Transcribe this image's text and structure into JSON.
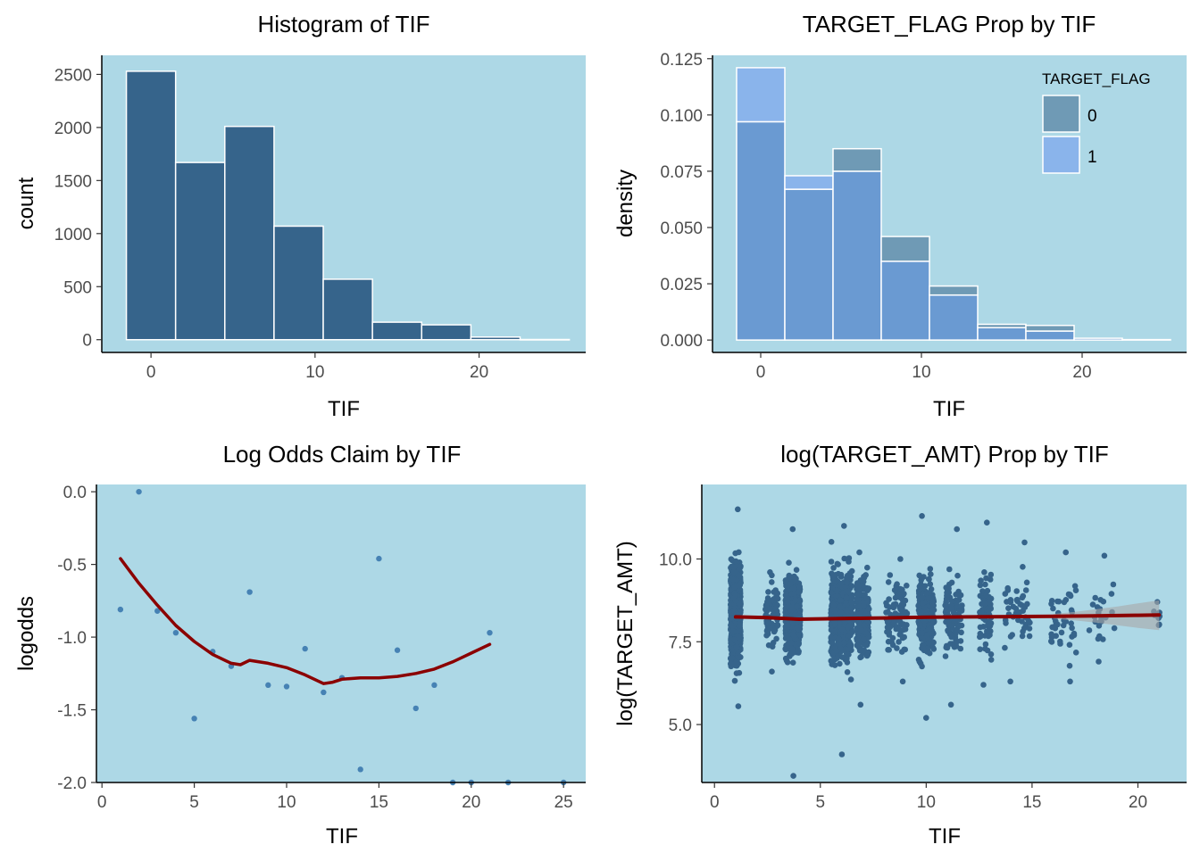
{
  "colors": {
    "panel_bg": "#add8e6",
    "hist_fill": "#36648b",
    "density_fill_0": "#6f9ab5",
    "density_fill_1": "#8ab4eb",
    "density_overlap": "#6a9ad2",
    "point_color": "#4682b4",
    "jitter_point_color": "#36648b",
    "smooth_line": "#8b0000",
    "ci_band": "#a9a9a9"
  },
  "chart_data": [
    {
      "type": "bar",
      "title": "Histogram of TIF",
      "xlabel": "TIF",
      "ylabel": "count",
      "xlim": [
        -3,
        26.5
      ],
      "ylim": [
        -120,
        2680
      ],
      "xticks": [
        0,
        10,
        20
      ],
      "yticks": [
        0,
        500,
        1000,
        1500,
        2000,
        2500
      ],
      "bins": [
        {
          "x0": -1.5,
          "x1": 1.5,
          "value": 2530
        },
        {
          "x0": 1.5,
          "x1": 4.5,
          "value": 1670
        },
        {
          "x0": 4.5,
          "x1": 7.5,
          "value": 2010
        },
        {
          "x0": 7.5,
          "x1": 10.5,
          "value": 1070
        },
        {
          "x0": 10.5,
          "x1": 13.5,
          "value": 570
        },
        {
          "x0": 13.5,
          "x1": 16.5,
          "value": 165
        },
        {
          "x0": 16.5,
          "x1": 19.5,
          "value": 140
        },
        {
          "x0": 19.5,
          "x1": 22.5,
          "value": 25
        },
        {
          "x0": 22.5,
          "x1": 25.5,
          "value": 2
        }
      ]
    },
    {
      "type": "bar",
      "title": "TARGET_FLAG Prop by TIF",
      "xlabel": "TIF",
      "ylabel": "density",
      "xlim": [
        -3,
        26.5
      ],
      "ylim": [
        -0.0055,
        0.1265
      ],
      "xticks": [
        0,
        10,
        20
      ],
      "yticks": [
        0.0,
        0.025,
        0.05,
        0.075,
        0.1,
        0.125
      ],
      "ytick_labels": [
        "0.000",
        "0.025",
        "0.050",
        "0.075",
        "0.100",
        "0.125"
      ],
      "legend": {
        "title": "TARGET_FLAG",
        "position": "top-right"
      },
      "bin_edges": [
        -1.5,
        1.5,
        4.5,
        7.5,
        10.5,
        13.5,
        16.5,
        19.5,
        22.5,
        25.5
      ],
      "series": [
        {
          "name": "0",
          "values": [
            0.097,
            0.067,
            0.085,
            0.046,
            0.024,
            0.007,
            0.0065,
            0.0012,
            0.0002
          ]
        },
        {
          "name": "1",
          "values": [
            0.121,
            0.073,
            0.075,
            0.035,
            0.02,
            0.0055,
            0.004,
            0.0008,
            0.0002
          ]
        }
      ]
    },
    {
      "type": "scatter",
      "title": "Log Odds Claim by TIF",
      "xlabel": "TIF",
      "ylabel": "logodds",
      "xlim": [
        -0.3,
        26.2
      ],
      "ylim": [
        -2.0,
        0.05
      ],
      "xticks": [
        0,
        5,
        10,
        15,
        20,
        25
      ],
      "yticks": [
        0.0,
        -0.5,
        -1.0,
        -1.5,
        -2.0
      ],
      "ytick_labels": [
        "0.0",
        "-0.5",
        "-1.0",
        "-1.5",
        "-2.0"
      ],
      "points": [
        {
          "x": 1,
          "y": -0.81
        },
        {
          "x": 2,
          "y": 0.0
        },
        {
          "x": 3,
          "y": -0.82
        },
        {
          "x": 4,
          "y": -0.97
        },
        {
          "x": 5,
          "y": -1.56
        },
        {
          "x": 6,
          "y": -1.1
        },
        {
          "x": 7,
          "y": -1.2
        },
        {
          "x": 8,
          "y": -0.69
        },
        {
          "x": 9,
          "y": -1.33
        },
        {
          "x": 10,
          "y": -1.34
        },
        {
          "x": 11,
          "y": -1.08
        },
        {
          "x": 12,
          "y": -1.38
        },
        {
          "x": 13,
          "y": -1.28
        },
        {
          "x": 14,
          "y": -1.91
        },
        {
          "x": 15,
          "y": -0.46
        },
        {
          "x": 16,
          "y": -1.09
        },
        {
          "x": 17,
          "y": -1.49
        },
        {
          "x": 18,
          "y": -1.33
        },
        {
          "x": 19,
          "y": -2.0
        },
        {
          "x": 20,
          "y": -2.0
        },
        {
          "x": 21,
          "y": -0.97
        },
        {
          "x": 22,
          "y": -2.0
        },
        {
          "x": 25,
          "y": -2.0
        }
      ],
      "smooth": {
        "x": [
          1,
          2,
          3,
          4,
          5,
          6,
          7,
          7.5,
          8,
          9,
          10,
          11,
          12,
          12.5,
          13,
          14,
          15,
          16,
          17,
          18,
          19,
          20,
          21
        ],
        "y": [
          -0.46,
          -0.63,
          -0.78,
          -0.92,
          -1.03,
          -1.12,
          -1.18,
          -1.19,
          -1.16,
          -1.18,
          -1.21,
          -1.26,
          -1.32,
          -1.31,
          -1.29,
          -1.28,
          -1.28,
          -1.27,
          -1.25,
          -1.22,
          -1.17,
          -1.11,
          -1.05
        ]
      }
    },
    {
      "type": "scatter",
      "title": "log(TARGET_AMT) Prop by TIF",
      "xlabel": "TIF",
      "ylabel": "log(TARGET_AMT)",
      "xlim": [
        -0.6,
        22.3
      ],
      "ylim": [
        3.25,
        12.25
      ],
      "xticks": [
        0,
        5,
        10,
        15,
        20
      ],
      "yticks": [
        5.0,
        7.5,
        10.0
      ],
      "ytick_labels": [
        "5.0",
        "7.5",
        "10.0"
      ],
      "jitter_columns": [
        {
          "x": 1.0,
          "width": 0.48,
          "count": 820,
          "sd": 0.95,
          "min": 5.55,
          "max": 11.5
        },
        {
          "x": 2.7,
          "width": 0.6,
          "count": 70,
          "sd": 0.62,
          "min": 6.6,
          "max": 9.6
        },
        {
          "x": 3.7,
          "width": 0.7,
          "count": 460,
          "sd": 0.8,
          "min": 3.45,
          "max": 10.9
        },
        {
          "x": 6.0,
          "width": 1.0,
          "count": 580,
          "sd": 0.9,
          "min": 4.1,
          "max": 11.0
        },
        {
          "x": 7.0,
          "width": 0.6,
          "count": 220,
          "sd": 0.78,
          "min": 5.6,
          "max": 10.2
        },
        {
          "x": 8.6,
          "width": 1.0,
          "count": 90,
          "sd": 0.72,
          "min": 6.3,
          "max": 10.0
        },
        {
          "x": 10.0,
          "width": 0.75,
          "count": 200,
          "sd": 0.82,
          "min": 5.2,
          "max": 11.3
        },
        {
          "x": 11.3,
          "width": 0.8,
          "count": 110,
          "sd": 0.76,
          "min": 5.6,
          "max": 10.9
        },
        {
          "x": 12.8,
          "width": 0.55,
          "count": 80,
          "sd": 0.72,
          "min": 6.2,
          "max": 11.1
        },
        {
          "x": 14.3,
          "width": 1.2,
          "count": 45,
          "sd": 0.75,
          "min": 6.3,
          "max": 10.5
        },
        {
          "x": 16.5,
          "width": 1.2,
          "count": 40,
          "sd": 0.7,
          "min": 6.3,
          "max": 10.2
        },
        {
          "x": 18.3,
          "width": 1.2,
          "count": 22,
          "sd": 0.7,
          "min": 6.9,
          "max": 10.1
        },
        {
          "x": 20.9,
          "width": 0.3,
          "count": 6,
          "sd": 0.3,
          "min": 8.0,
          "max": 8.7
        }
      ],
      "smooth": {
        "x": [
          1,
          2.5,
          4,
          6,
          8,
          10,
          12,
          14,
          16,
          18,
          20,
          21
        ],
        "y": [
          8.25,
          8.23,
          8.18,
          8.2,
          8.22,
          8.24,
          8.25,
          8.26,
          8.27,
          8.28,
          8.3,
          8.31
        ]
      },
      "ci_band": {
        "x": [
          16,
          17,
          18,
          19,
          20,
          21
        ],
        "lower": [
          8.2,
          8.15,
          8.08,
          8.0,
          7.92,
          7.85
        ],
        "upper": [
          8.34,
          8.4,
          8.48,
          8.56,
          8.66,
          8.75
        ]
      }
    }
  ]
}
